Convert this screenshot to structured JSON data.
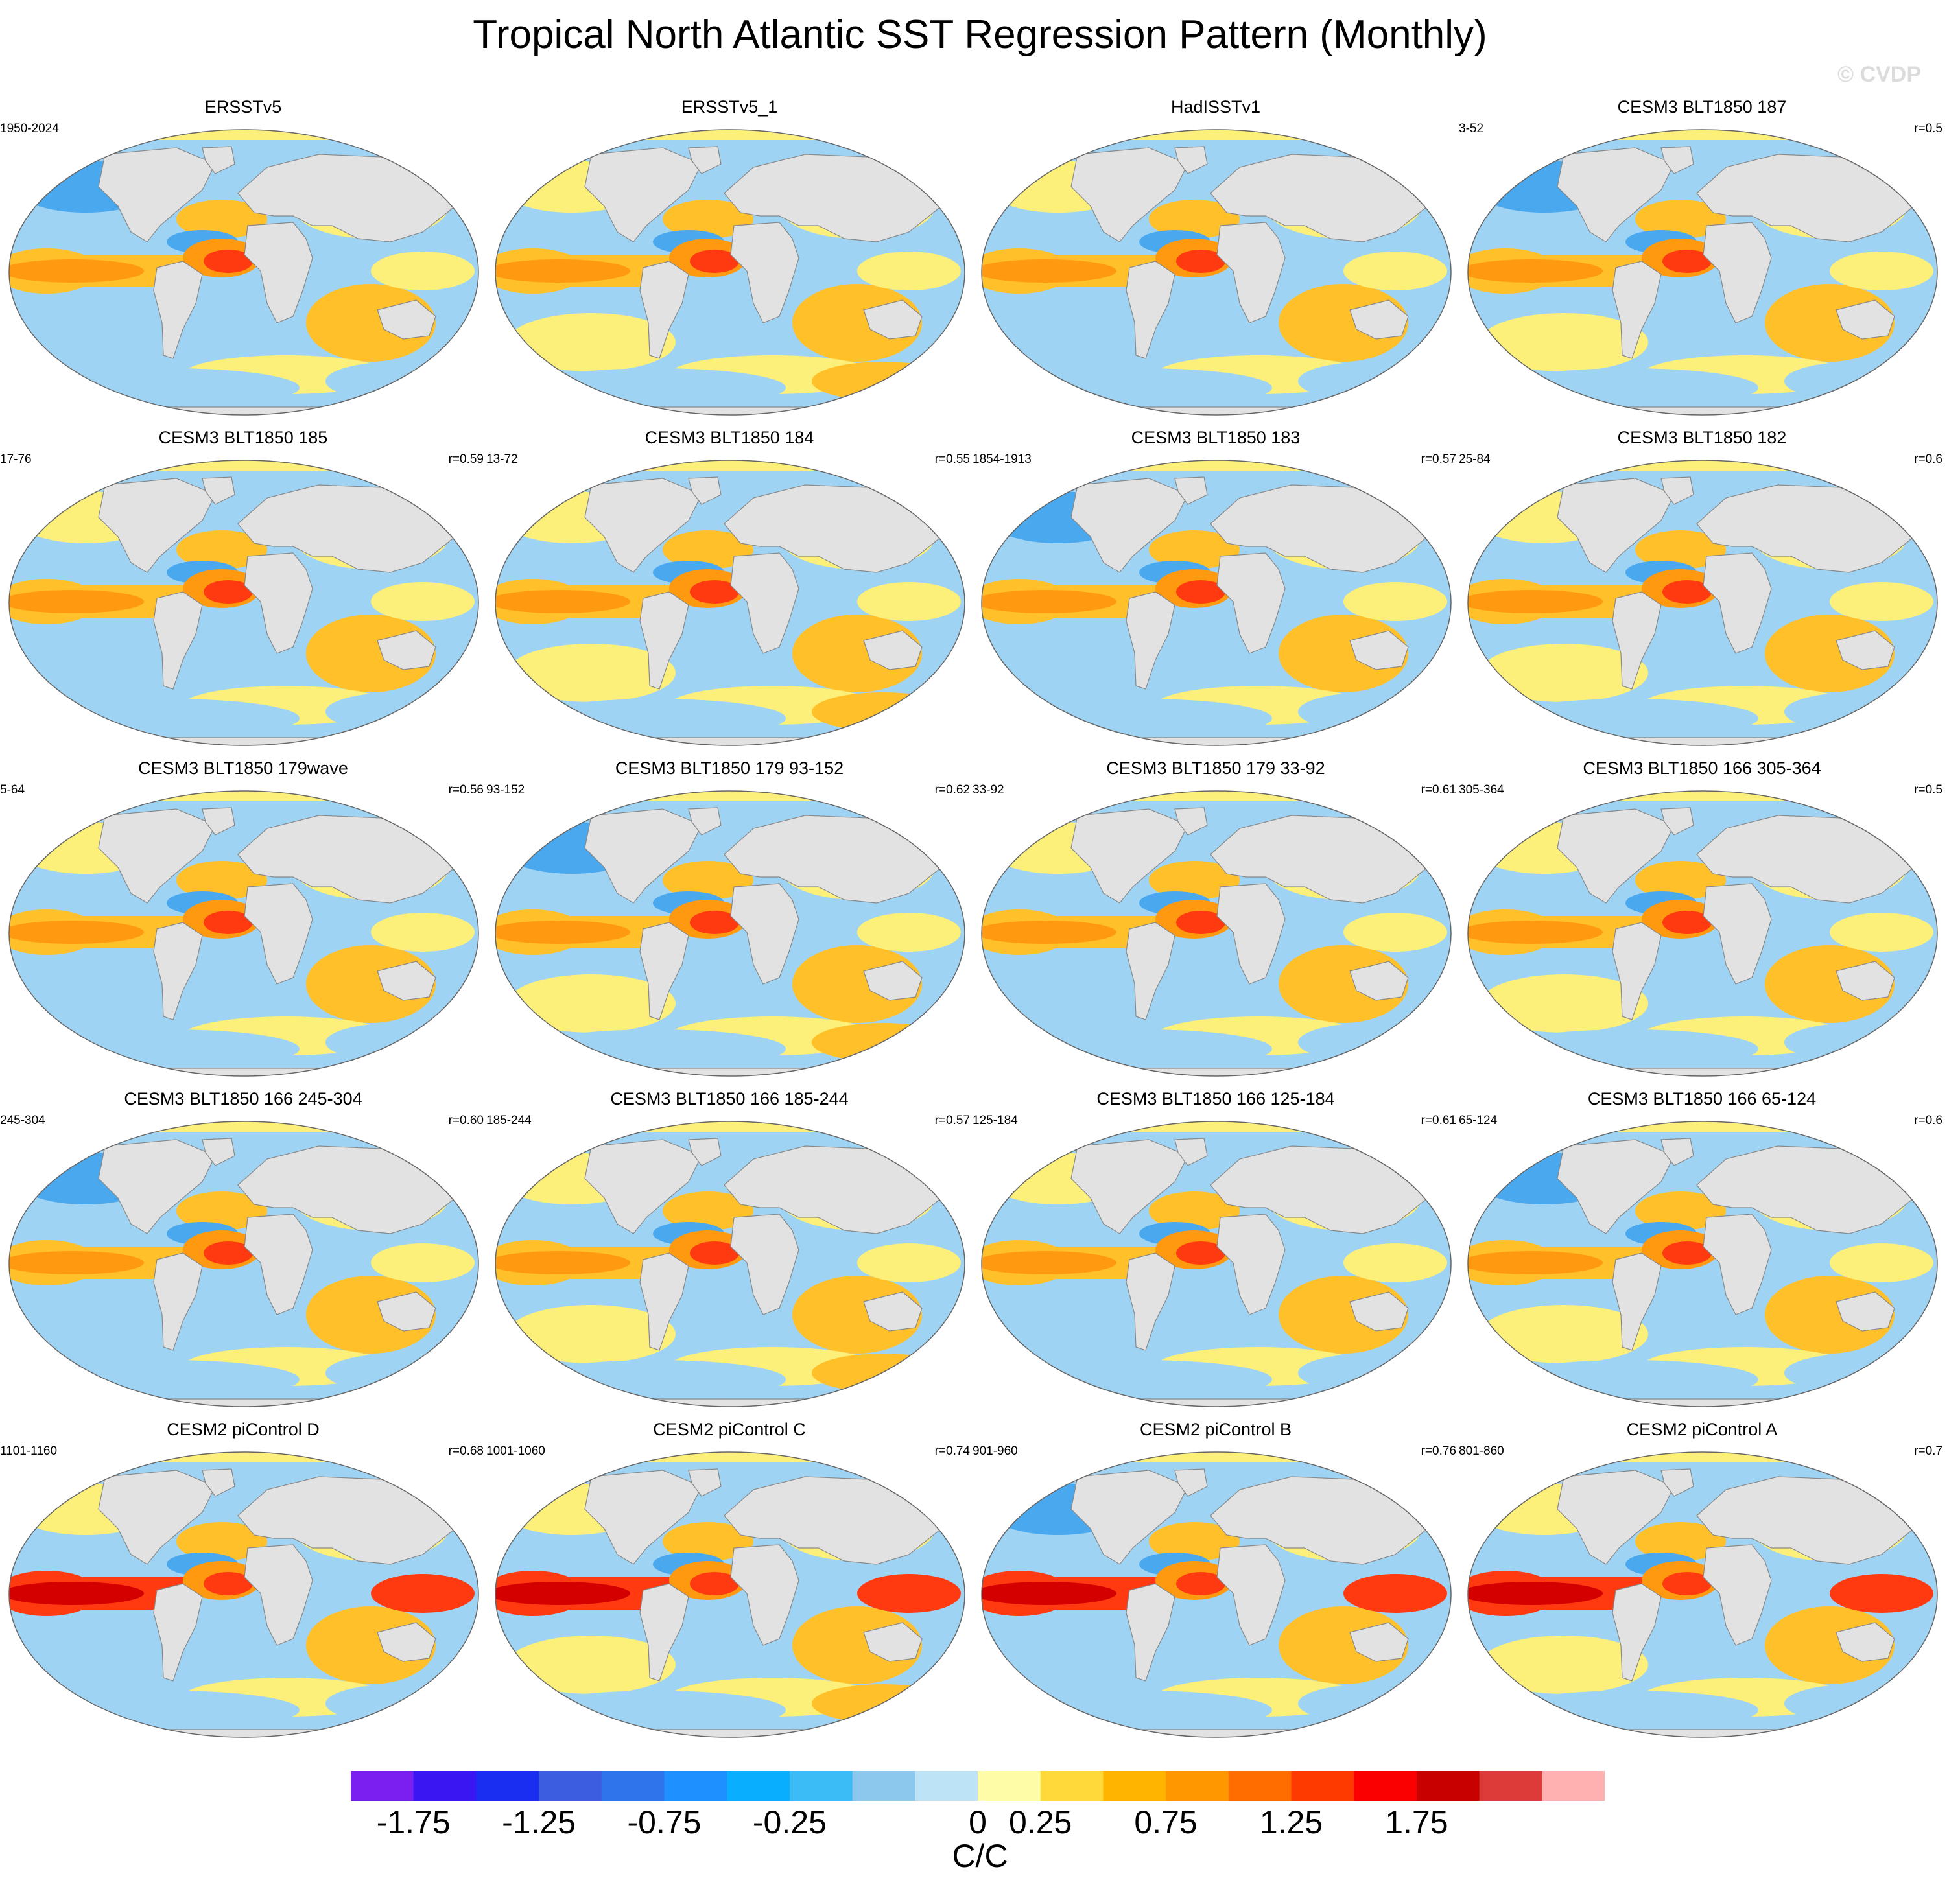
{
  "figure": {
    "title": "Tropical North Atlantic SST Regression Pattern (Monthly)",
    "watermark": "© CVDP"
  },
  "panels": [
    {
      "title": "ERSSTv5",
      "period": "1950-2024",
      "corr": "",
      "pattern": 0
    },
    {
      "title": "ERSSTv5_1",
      "period": "",
      "corr": "",
      "pattern": 1
    },
    {
      "title": "HadISSTv1",
      "period": "",
      "corr": "",
      "pattern": 2
    },
    {
      "title": "CESM3 BLT1850 187",
      "period": "3-52",
      "corr": "r=0.5",
      "pattern": 3
    },
    {
      "title": "CESM3 BLT1850 185",
      "period": "17-76",
      "corr": "r=0.59",
      "pattern": 4
    },
    {
      "title": "CESM3 BLT1850 184",
      "period": "13-72",
      "corr": "r=0.55",
      "pattern": 5
    },
    {
      "title": "CESM3 BLT1850 183",
      "period": "1854-1913",
      "corr": "r=0.57",
      "pattern": 6
    },
    {
      "title": "CESM3 BLT1850 182",
      "period": "25-84",
      "corr": "r=0.6",
      "pattern": 7
    },
    {
      "title": "CESM3 BLT1850 179wave",
      "period": "5-64",
      "corr": "r=0.56",
      "pattern": 8
    },
    {
      "title": "CESM3 BLT1850 179 93-152",
      "period": "93-152",
      "corr": "r=0.62",
      "pattern": 9
    },
    {
      "title": "CESM3 BLT1850 179 33-92",
      "period": "33-92",
      "corr": "r=0.61",
      "pattern": 10
    },
    {
      "title": "CESM3 BLT1850 166 305-364",
      "period": "305-364",
      "corr": "r=0.5",
      "pattern": 11
    },
    {
      "title": "CESM3 BLT1850 166 245-304",
      "period": "245-304",
      "corr": "r=0.60",
      "pattern": 12
    },
    {
      "title": "CESM3 BLT1850 166 185-244",
      "period": "185-244",
      "corr": "r=0.57",
      "pattern": 13
    },
    {
      "title": "CESM3 BLT1850 166 125-184",
      "period": "125-184",
      "corr": "r=0.61",
      "pattern": 14
    },
    {
      "title": "CESM3 BLT1850 166 65-124",
      "period": "65-124",
      "corr": "r=0.6",
      "pattern": 15
    },
    {
      "title": "CESM2 piControl D",
      "period": "1101-1160",
      "corr": "r=0.68",
      "pattern": 16
    },
    {
      "title": "CESM2 piControl C",
      "period": "1001-1060",
      "corr": "r=0.74",
      "pattern": 17
    },
    {
      "title": "CESM2 piControl B",
      "period": "901-960",
      "corr": "r=0.76",
      "pattern": 18
    },
    {
      "title": "CESM2 piControl A",
      "period": "801-860",
      "corr": "r=0.7",
      "pattern": 19
    }
  ],
  "colorbar": {
    "units": "C/C",
    "tick_labels": [
      "-1.75",
      "-1.25",
      "-0.75",
      "-0.25",
      "0",
      "0.25",
      "0.75",
      "1.25",
      "1.75"
    ],
    "colors": [
      "#7a1fef",
      "#3a16f2",
      "#1a2ef2",
      "#3d5de0",
      "#2f74ea",
      "#1e90ff",
      "#0aaeff",
      "#3cbcf6",
      "#8cc8ee",
      "#bde3f6",
      "#fffca8",
      "#ffd83a",
      "#ffb400",
      "#ff9800",
      "#ff6c00",
      "#ff3a00",
      "#fa0000",
      "#c80000",
      "#dd3a3a",
      "#ffb0b0"
    ]
  }
}
